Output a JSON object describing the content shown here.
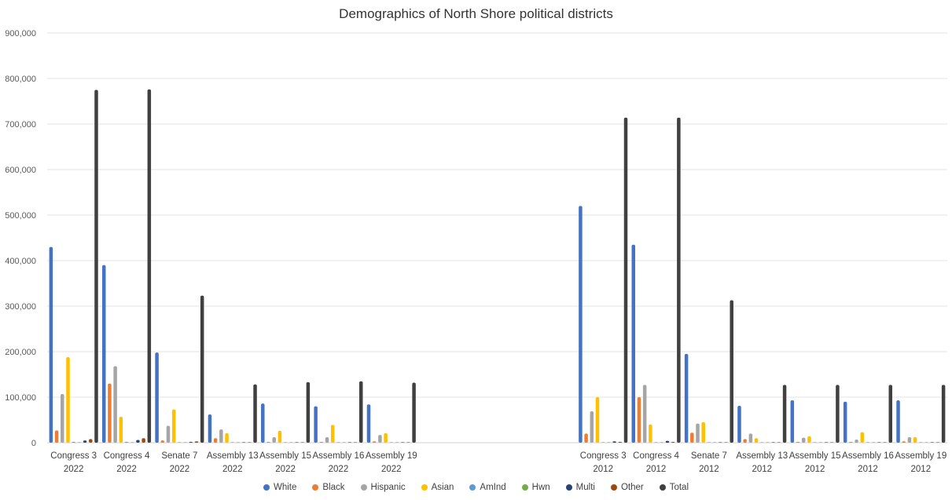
{
  "chart_data": {
    "type": "bar",
    "title": "Demographics of North Shore political districts",
    "xlabel": "",
    "ylabel": "",
    "ylim": [
      0,
      900000
    ],
    "yticks": [
      0,
      100000,
      200000,
      300000,
      400000,
      500000,
      600000,
      700000,
      800000,
      900000
    ],
    "ytick_labels": [
      "0",
      "100,000",
      "200,000",
      "300,000",
      "400,000",
      "500,000",
      "600,000",
      "700,000",
      "800,000",
      "900,000"
    ],
    "grid": true,
    "legend_position": "bottom",
    "categories": [
      [
        "Congress 3",
        "2022"
      ],
      [
        "Congress 4",
        "2022"
      ],
      [
        "Senate 7",
        "2022"
      ],
      [
        "Assembly 13",
        "2022"
      ],
      [
        "Assembly 15",
        "2022"
      ],
      [
        "Assembly 16",
        "2022"
      ],
      [
        "Assembly 19",
        "2022"
      ],
      [
        "",
        ""
      ],
      [
        "",
        ""
      ],
      [
        "",
        ""
      ],
      [
        "Congress 3",
        "2012"
      ],
      [
        "Congress 4",
        "2012"
      ],
      [
        "Senate 7",
        "2012"
      ],
      [
        "Assembly 13",
        "2012"
      ],
      [
        "Assembly 15",
        "2012"
      ],
      [
        "Assembly 16",
        "2012"
      ],
      [
        "Assembly 19",
        "2012"
      ]
    ],
    "series": [
      {
        "name": "White",
        "color": "#4472C4",
        "values": [
          430000,
          390000,
          198000,
          62000,
          86000,
          80000,
          84000,
          null,
          null,
          null,
          520000,
          435000,
          195000,
          81000,
          93000,
          90000,
          93000
        ]
      },
      {
        "name": "Black",
        "color": "#ED7D31",
        "values": [
          27000,
          130000,
          5000,
          10000,
          2000,
          2000,
          3000,
          null,
          null,
          null,
          20000,
          100000,
          22000,
          8000,
          2000,
          2000,
          3000
        ]
      },
      {
        "name": "Hispanic",
        "color": "#A5A5A5",
        "values": [
          107000,
          168000,
          37000,
          29000,
          12000,
          12000,
          17000,
          null,
          null,
          null,
          69000,
          127000,
          42000,
          20000,
          11000,
          7000,
          12000
        ]
      },
      {
        "name": "Asian",
        "color": "#FFC000",
        "values": [
          188000,
          57000,
          73000,
          21000,
          26000,
          39000,
          21000,
          null,
          null,
          null,
          100000,
          40000,
          45000,
          10000,
          14000,
          23000,
          12000
        ]
      },
      {
        "name": "AmInd",
        "color": "#5B9BD5",
        "values": [
          2000,
          2000,
          1000,
          500,
          500,
          500,
          500,
          null,
          null,
          null,
          1000,
          1000,
          500,
          500,
          500,
          500,
          500
        ]
      },
      {
        "name": "Hwn",
        "color": "#70AD47",
        "values": [
          300,
          300,
          200,
          100,
          100,
          100,
          100,
          null,
          null,
          null,
          200,
          200,
          100,
          100,
          100,
          100,
          100
        ]
      },
      {
        "name": "Multi",
        "color": "#264478",
        "values": [
          5000,
          6000,
          2000,
          1000,
          1000,
          1000,
          1000,
          null,
          null,
          null,
          3000,
          4000,
          1000,
          500,
          500,
          500,
          500
        ]
      },
      {
        "name": "Other",
        "color": "#9E480E",
        "values": [
          8000,
          10000,
          3000,
          1000,
          1000,
          1000,
          1000,
          null,
          null,
          null,
          2000,
          2000,
          1000,
          500,
          500,
          500,
          500
        ]
      },
      {
        "name": "Total",
        "color": "#404040",
        "values": [
          775000,
          776000,
          323000,
          128000,
          133000,
          135000,
          132000,
          null,
          null,
          null,
          714000,
          714000,
          313000,
          127000,
          127000,
          127000,
          127000
        ]
      }
    ]
  }
}
